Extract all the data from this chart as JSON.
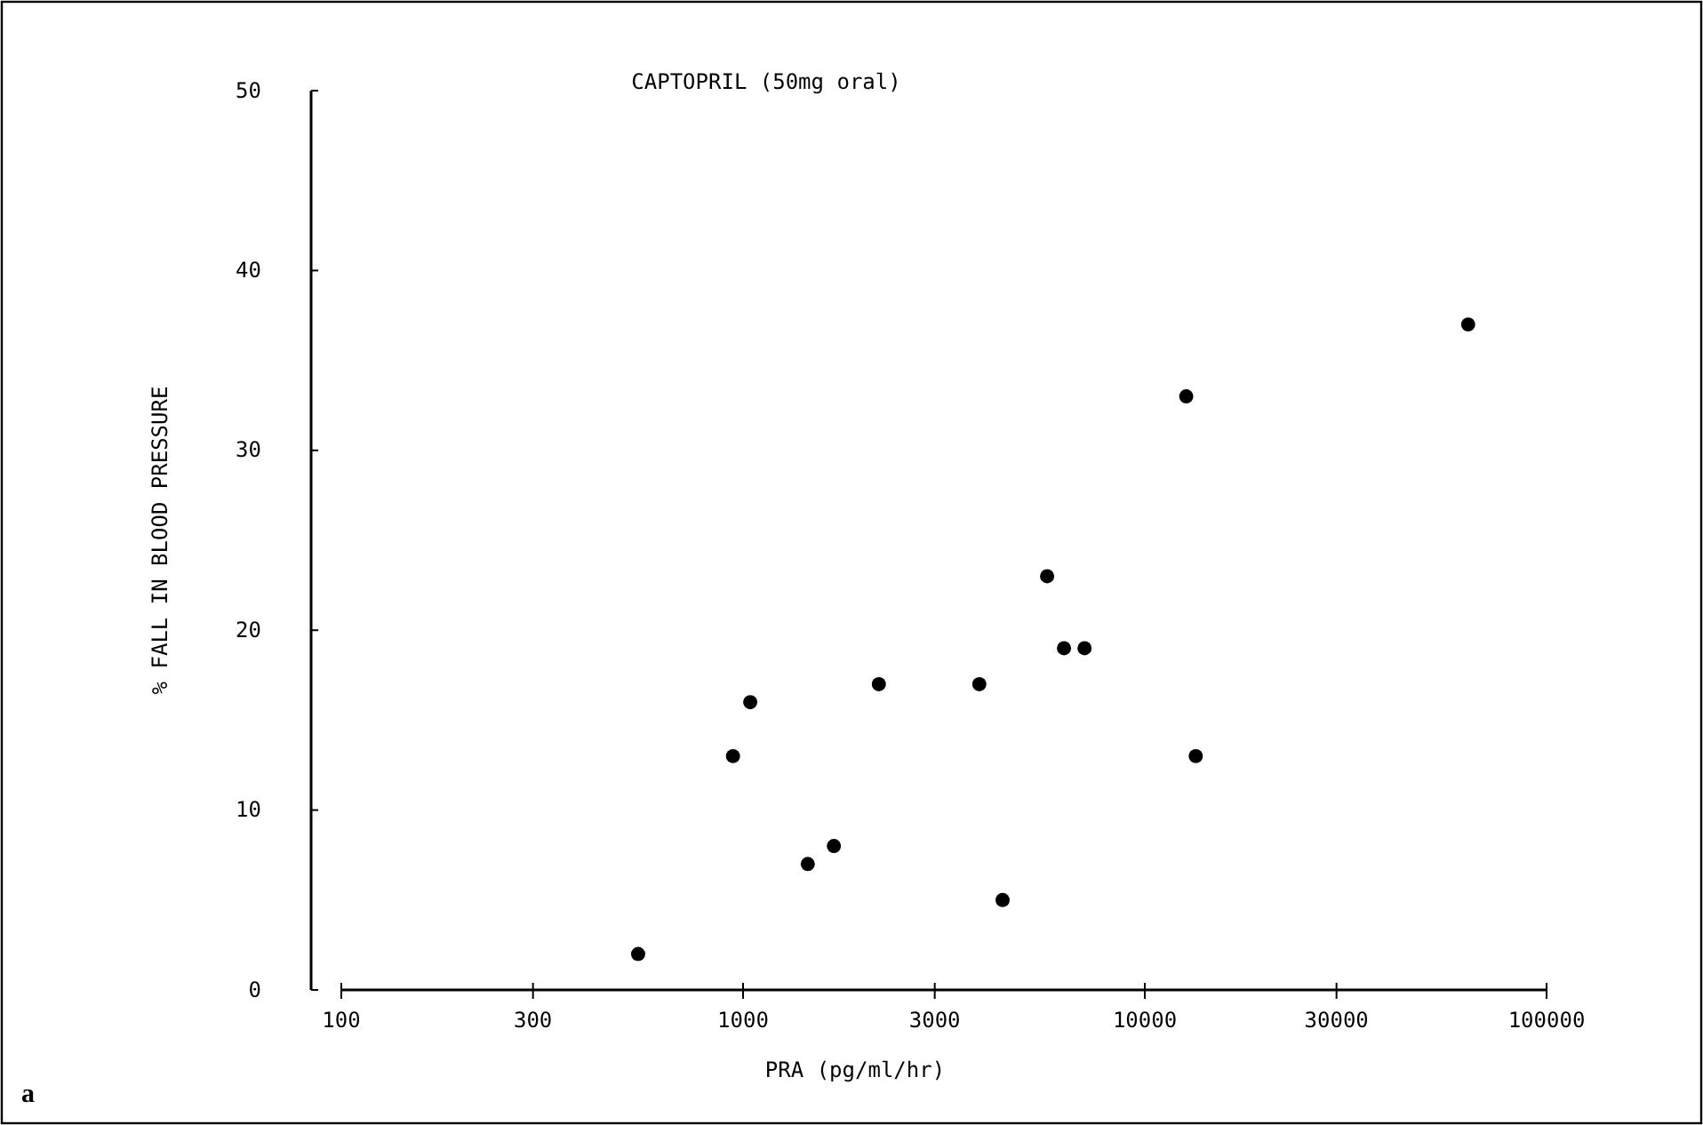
{
  "chart_data": {
    "type": "scatter",
    "title": "CAPTOPRIL (50mg oral)",
    "xlabel": "PRA (pg/ml/hr)",
    "ylabel": "% FALL IN BLOOD PRESSURE",
    "log": "x",
    "marker": "circle",
    "grid": false,
    "x": [
      548,
      944,
      1042,
      1449,
      1683,
      2178,
      3873,
      4426,
      5713,
      6293,
      7079,
      12680,
      13390,
      63800
    ],
    "series": [
      {
        "color": "#000000",
        "values": [
          2,
          13,
          16,
          7,
          8,
          17,
          17,
          5,
          23,
          19,
          19,
          33,
          13,
          37
        ]
      }
    ],
    "xlim": [
      100,
      100000
    ],
    "xticks": [
      100,
      300,
      1000,
      3000,
      10000,
      30000,
      100000
    ],
    "ylim": [
      0,
      50
    ],
    "yticks": [
      0,
      10,
      20,
      30,
      40,
      50
    ],
    "annotations": [
      "a"
    ]
  }
}
